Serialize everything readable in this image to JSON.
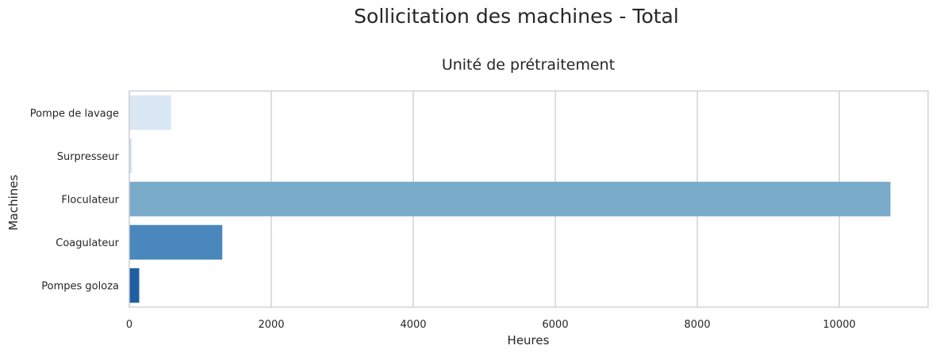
{
  "figure": {
    "suptitle": "Sollicitation des machines - Total"
  },
  "chart_data": {
    "type": "bar",
    "orientation": "horizontal",
    "title": "Unité de prétraitement",
    "xlabel": "Heures",
    "ylabel": "Machines",
    "categories": [
      "Pompe de lavage",
      "Surpresseur",
      "Floculateur",
      "Coagulateur",
      "Pompes goloza"
    ],
    "values": [
      590,
      30,
      10720,
      1310,
      140
    ],
    "colors": [
      "#dae8f5",
      "#c9dcee",
      "#79aac9",
      "#4987bd",
      "#1f5f9f"
    ],
    "xlim": [
      0,
      11250
    ],
    "xticks": [
      0,
      2000,
      4000,
      6000,
      8000,
      10000
    ],
    "xtick_labels": [
      "0",
      "2000",
      "4000",
      "6000",
      "8000",
      "10000"
    ],
    "grid": {
      "x": true,
      "y": false
    }
  }
}
